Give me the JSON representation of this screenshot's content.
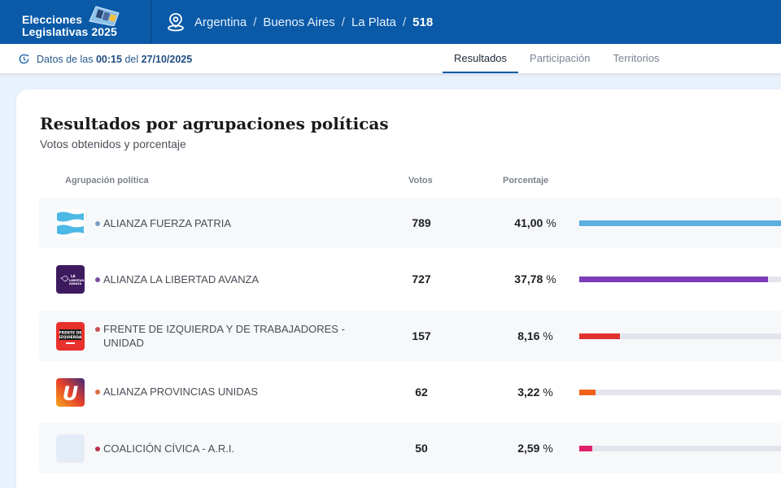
{
  "header": {
    "brand_line1": "Elecciones",
    "brand_line2": "Legislativas 2025",
    "location_icon": "map-pin-icon",
    "breadcrumb": [
      "Argentina",
      "Buenos Aires",
      "La Plata"
    ],
    "breadcrumb_last": "518",
    "separator": "/"
  },
  "subbar": {
    "stamp_prefix": "Datos de las",
    "time": "00:15",
    "stamp_mid": "del",
    "date": "27/10/2025",
    "tabs": [
      {
        "label": "Resultados",
        "active": true
      },
      {
        "label": "Participación",
        "active": false
      },
      {
        "label": "Territorios",
        "active": false
      }
    ]
  },
  "card": {
    "title": "Resultados por agrupaciones políticas",
    "subtitle": "Votos obtenidos y porcentaje",
    "columns": {
      "party": "Agrupación política",
      "votes": "Votos",
      "pct": "Porcentaje"
    },
    "rows": [
      {
        "name": "ALIANZA FUERZA PATRIA",
        "votes": "789",
        "pct": "41,00",
        "unit": "%",
        "pct_value": 41.0,
        "color": "#5aaee0",
        "dot": "#7a9cc0",
        "logo": "fuerza-patria"
      },
      {
        "name": "ALIANZA LA LIBERTAD AVANZA",
        "votes": "727",
        "pct": "37,78",
        "unit": "%",
        "pct_value": 37.78,
        "color": "#7a3cb8",
        "dot": "#7a4aa0",
        "logo": "libertad-avanza"
      },
      {
        "name": "FRENTE DE IZQUIERDA Y DE TRABAJADORES - UNIDAD",
        "votes": "157",
        "pct": "8,16",
        "unit": "%",
        "pct_value": 8.16,
        "color": "#e0312f",
        "dot": "#c85050",
        "logo": "frente-izquierda"
      },
      {
        "name": "ALIANZA PROVINCIAS UNIDAS",
        "votes": "62",
        "pct": "3,22",
        "unit": "%",
        "pct_value": 3.22,
        "color": "#f0601a",
        "dot": "#d86a40",
        "logo": "provincias-unidas"
      },
      {
        "name": "COALICIÓN CÍVICA - A.R.I.",
        "votes": "50",
        "pct": "2,59",
        "unit": "%",
        "pct_value": 2.59,
        "color": "#e0206a",
        "dot": "#b8304a",
        "logo": "coalicion-civica"
      }
    ]
  }
}
